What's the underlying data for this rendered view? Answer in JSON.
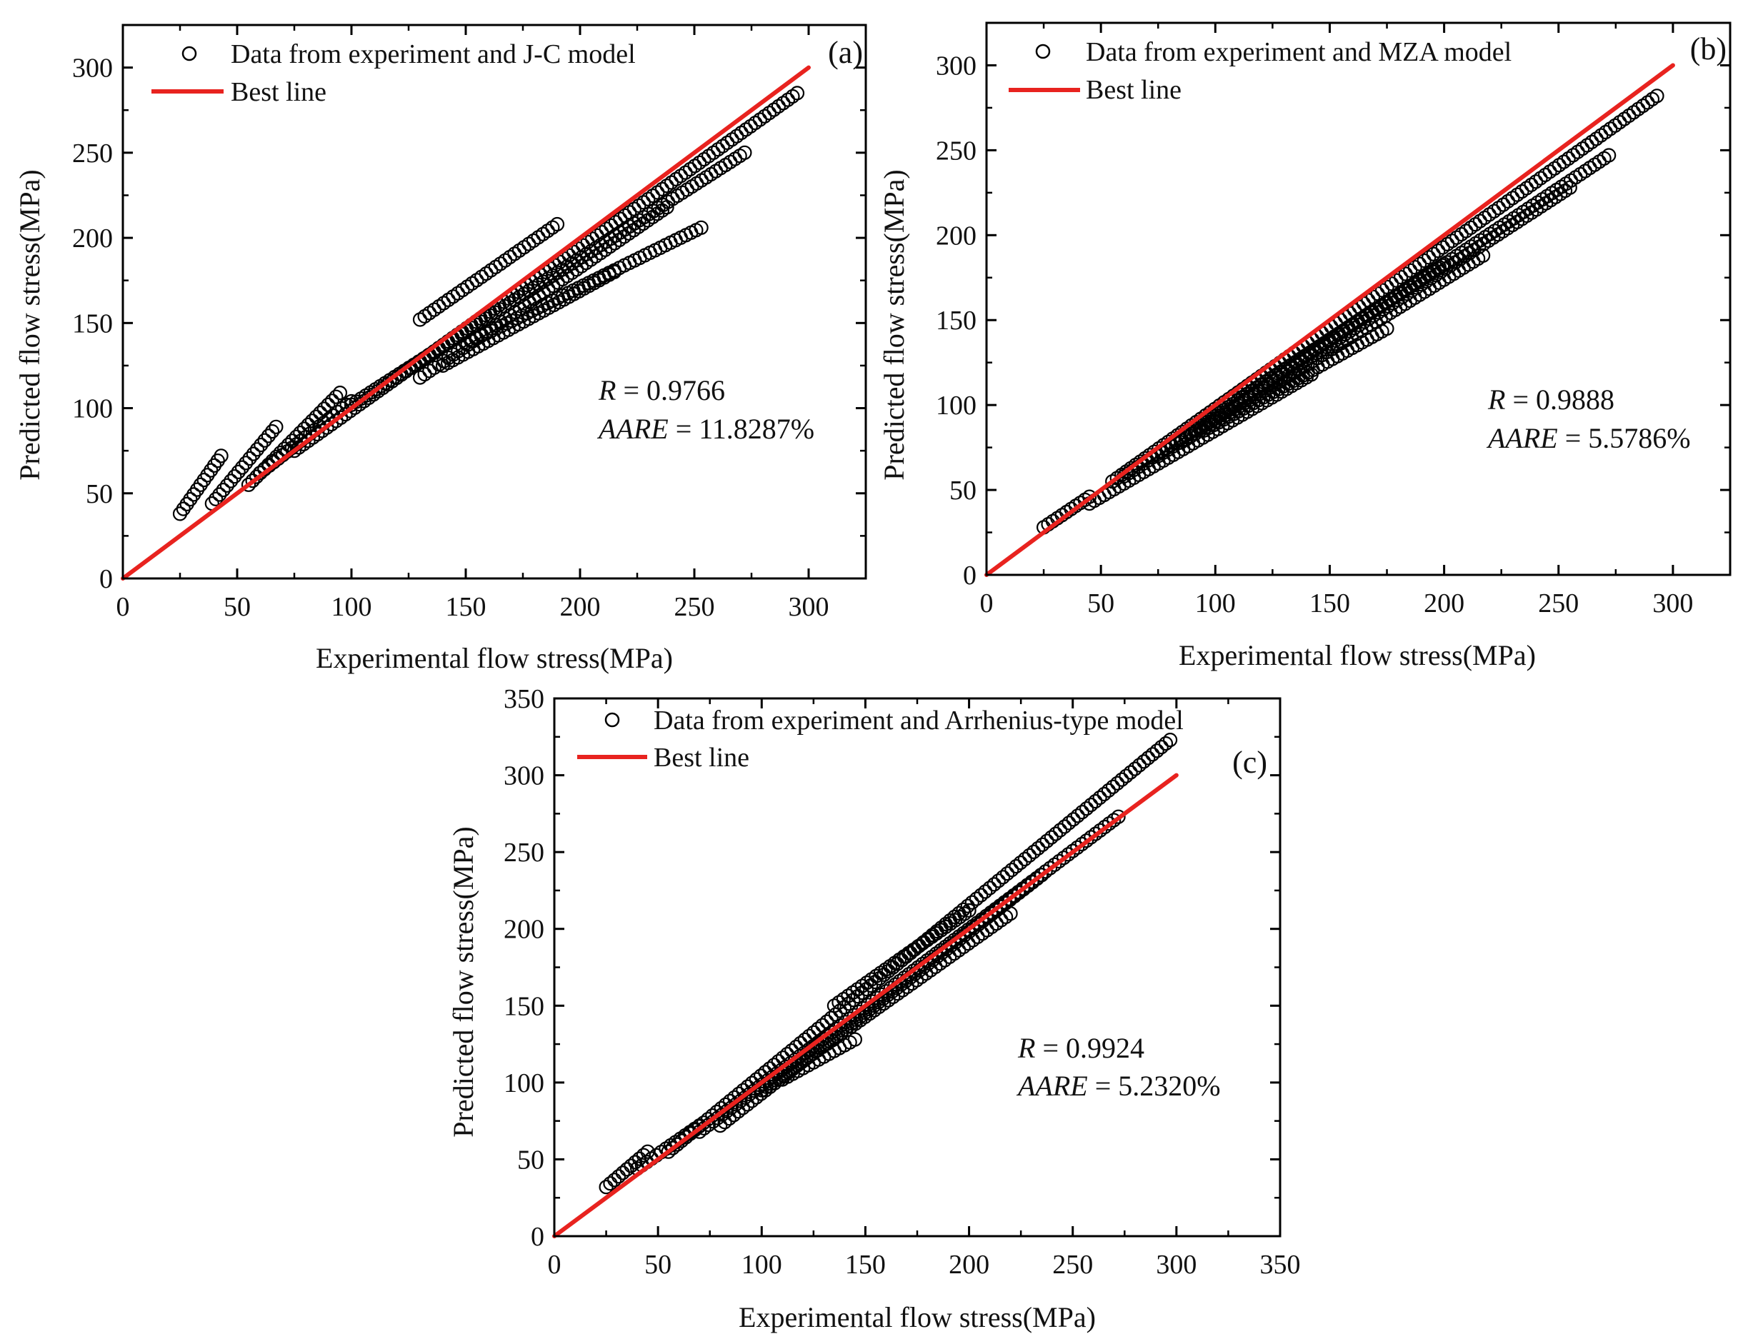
{
  "chart_data": [
    {
      "id": "a",
      "type": "scatter",
      "panel_label": "(a)",
      "xlabel": "Experimental flow stress(MPa)",
      "ylabel": "Predicted flow stress(MPa)",
      "xlim": [
        0,
        325
      ],
      "ylim": [
        0,
        325
      ],
      "xticks": [
        0,
        50,
        100,
        150,
        200,
        250,
        300
      ],
      "yticks": [
        0,
        50,
        100,
        150,
        200,
        250,
        300
      ],
      "legend": {
        "position": "top-left",
        "scatter_label": "Data from experiment and J-C model",
        "line_label": "Best line"
      },
      "stats": {
        "r_symbol": "R",
        "r_value": " = 0.9766",
        "aare_symbol": "AARE",
        "aare_value": " = 11.8287%"
      },
      "best_line": {
        "from": [
          0,
          0
        ],
        "to": [
          300,
          300
        ],
        "color": "#e8231f"
      },
      "series": [
        {
          "name": "s1",
          "x0": 25,
          "y0": 38,
          "x1": 43,
          "y1": 72
        },
        {
          "name": "s2",
          "x0": 39,
          "y0": 44,
          "x1": 67,
          "y1": 89
        },
        {
          "name": "s3",
          "x0": 55,
          "y0": 55,
          "x1": 95,
          "y1": 109
        },
        {
          "name": "s4",
          "x0": 60,
          "y0": 62,
          "x1": 100,
          "y1": 104
        },
        {
          "name": "s5",
          "x0": 75,
          "y0": 75,
          "x1": 295,
          "y1": 285
        },
        {
          "name": "s6",
          "x0": 100,
          "y0": 102,
          "x1": 272,
          "y1": 250
        },
        {
          "name": "s7",
          "x0": 130,
          "y0": 118,
          "x1": 238,
          "y1": 218
        },
        {
          "name": "s8",
          "x0": 150,
          "y0": 138,
          "x1": 253,
          "y1": 206
        },
        {
          "name": "s9",
          "x0": 140,
          "y0": 125,
          "x1": 215,
          "y1": 180
        },
        {
          "name": "s10",
          "x0": 130,
          "y0": 152,
          "x1": 190,
          "y1": 208
        }
      ]
    },
    {
      "id": "b",
      "type": "scatter",
      "panel_label": "(b)",
      "xlabel": "Experimental flow stress(MPa)",
      "ylabel": "Predicted flow stress(MPa)",
      "xlim": [
        0,
        325
      ],
      "ylim": [
        0,
        325
      ],
      "xticks": [
        0,
        50,
        100,
        150,
        200,
        250,
        300
      ],
      "yticks": [
        0,
        50,
        100,
        150,
        200,
        250,
        300
      ],
      "legend": {
        "position": "top-left",
        "scatter_label": "Data from experiment and MZA model",
        "line_label": "Best line"
      },
      "stats": {
        "r_symbol": "R",
        "r_value": " = 0.9888",
        "aare_symbol": "AARE",
        "aare_value": " = 5.5786%"
      },
      "best_line": {
        "from": [
          0,
          0
        ],
        "to": [
          300,
          300
        ],
        "color": "#e8231f"
      },
      "series": [
        {
          "name": "s1",
          "x0": 25,
          "y0": 28,
          "x1": 45,
          "y1": 46
        },
        {
          "name": "s2",
          "x0": 45,
          "y0": 42,
          "x1": 142,
          "y1": 118
        },
        {
          "name": "s3",
          "x0": 55,
          "y0": 55,
          "x1": 293,
          "y1": 282
        },
        {
          "name": "s4",
          "x0": 60,
          "y0": 58,
          "x1": 272,
          "y1": 247
        },
        {
          "name": "s5",
          "x0": 75,
          "y0": 70,
          "x1": 255,
          "y1": 228
        },
        {
          "name": "s6",
          "x0": 85,
          "y0": 78,
          "x1": 217,
          "y1": 188
        },
        {
          "name": "s7",
          "x0": 95,
          "y0": 85,
          "x1": 175,
          "y1": 145
        },
        {
          "name": "s8",
          "x0": 110,
          "y0": 103,
          "x1": 200,
          "y1": 183
        }
      ]
    },
    {
      "id": "c",
      "type": "scatter",
      "panel_label": "(c)",
      "xlabel": "Experimental flow stress(MPa)",
      "ylabel": "Predicted flow stress(MPa)",
      "xlim": [
        0,
        350
      ],
      "ylim": [
        0,
        350
      ],
      "xticks": [
        0,
        50,
        100,
        150,
        200,
        250,
        300,
        350
      ],
      "yticks": [
        0,
        50,
        100,
        150,
        200,
        250,
        300,
        350
      ],
      "legend": {
        "position": "top-left",
        "scatter_label": "Data from experiment and Arrhenius-type model",
        "line_label": "Best line"
      },
      "stats": {
        "r_symbol": "R",
        "r_value": " = 0.9924",
        "aare_symbol": "AARE",
        "aare_value": " = 5.2320%"
      },
      "best_line": {
        "from": [
          0,
          0
        ],
        "to": [
          300,
          300
        ],
        "color": "#e8231f"
      },
      "series": [
        {
          "name": "s1",
          "x0": 25,
          "y0": 32,
          "x1": 45,
          "y1": 55
        },
        {
          "name": "s2",
          "x0": 40,
          "y0": 44,
          "x1": 70,
          "y1": 72
        },
        {
          "name": "s3",
          "x0": 55,
          "y0": 55,
          "x1": 297,
          "y1": 323
        },
        {
          "name": "s4",
          "x0": 70,
          "y0": 68,
          "x1": 272,
          "y1": 273
        },
        {
          "name": "s5",
          "x0": 80,
          "y0": 72,
          "x1": 235,
          "y1": 235
        },
        {
          "name": "s6",
          "x0": 100,
          "y0": 95,
          "x1": 220,
          "y1": 210
        },
        {
          "name": "s7",
          "x0": 110,
          "y0": 102,
          "x1": 145,
          "y1": 128
        },
        {
          "name": "s8",
          "x0": 135,
          "y0": 150,
          "x1": 200,
          "y1": 212
        }
      ]
    }
  ]
}
